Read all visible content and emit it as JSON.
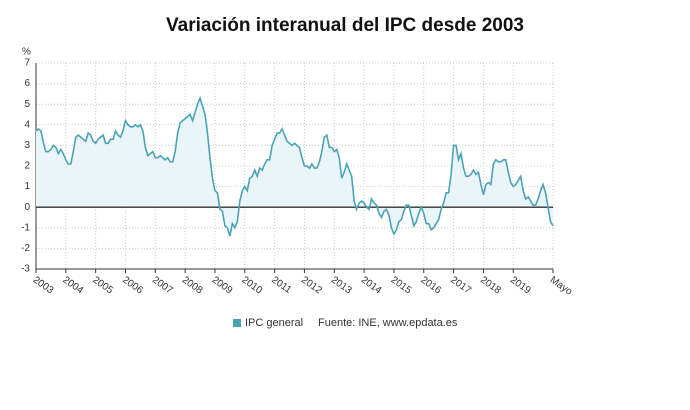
{
  "chart_data": {
    "type": "line",
    "title": "Variación interanual del IPC desde 2003",
    "y_unit": "%",
    "categories": [
      "2003",
      null,
      null,
      null,
      null,
      null,
      null,
      null,
      null,
      null,
      null,
      null,
      "2004",
      null,
      null,
      null,
      null,
      null,
      null,
      null,
      null,
      null,
      null,
      null,
      "2005",
      null,
      null,
      null,
      null,
      null,
      null,
      null,
      null,
      null,
      null,
      null,
      "2006",
      null,
      null,
      null,
      null,
      null,
      null,
      null,
      null,
      null,
      null,
      null,
      "2007",
      null,
      null,
      null,
      null,
      null,
      null,
      null,
      null,
      null,
      null,
      null,
      "2008",
      null,
      null,
      null,
      null,
      null,
      null,
      null,
      null,
      null,
      null,
      null,
      "2009",
      null,
      null,
      null,
      null,
      null,
      null,
      null,
      null,
      null,
      null,
      null,
      "2010",
      null,
      null,
      null,
      null,
      null,
      null,
      null,
      null,
      null,
      null,
      null,
      "2011",
      null,
      null,
      null,
      null,
      null,
      null,
      null,
      null,
      null,
      null,
      null,
      "2012",
      null,
      null,
      null,
      null,
      null,
      null,
      null,
      null,
      null,
      null,
      null,
      "2013",
      null,
      null,
      null,
      null,
      null,
      null,
      null,
      null,
      null,
      null,
      null,
      "2014",
      null,
      null,
      null,
      null,
      null,
      null,
      null,
      null,
      null,
      null,
      null,
      "2015",
      null,
      null,
      null,
      null,
      null,
      null,
      null,
      null,
      null,
      null,
      null,
      "2016",
      null,
      null,
      null,
      null,
      null,
      null,
      null,
      null,
      null,
      null,
      null,
      "2017",
      null,
      null,
      null,
      null,
      null,
      null,
      null,
      null,
      null,
      null,
      null,
      "2018",
      null,
      null,
      null,
      null,
      null,
      null,
      null,
      null,
      null,
      null,
      null,
      "2019",
      null,
      null,
      null,
      null,
      null,
      null,
      null,
      null,
      null,
      null,
      null,
      null,
      null,
      null,
      null,
      "Mayo"
    ],
    "series": [
      {
        "name": "IPC general",
        "color": "#4ba3b5",
        "area_color": "#eaf5f9",
        "values": [
          3.7,
          3.8,
          3.7,
          3.1,
          2.7,
          2.7,
          2.8,
          3.0,
          2.9,
          2.6,
          2.8,
          2.6,
          2.3,
          2.1,
          2.1,
          2.7,
          3.4,
          3.5,
          3.4,
          3.3,
          3.2,
          3.6,
          3.5,
          3.2,
          3.1,
          3.3,
          3.4,
          3.5,
          3.1,
          3.1,
          3.3,
          3.3,
          3.7,
          3.5,
          3.4,
          3.7,
          4.2,
          4.0,
          3.9,
          3.9,
          4.0,
          3.9,
          4.0,
          3.7,
          2.9,
          2.5,
          2.6,
          2.7,
          2.4,
          2.4,
          2.5,
          2.4,
          2.3,
          2.4,
          2.2,
          2.2,
          2.7,
          3.6,
          4.1,
          4.2,
          4.3,
          4.4,
          4.5,
          4.2,
          4.6,
          5.0,
          5.3,
          4.9,
          4.5,
          3.6,
          2.4,
          1.4,
          0.8,
          0.7,
          -0.1,
          -0.2,
          -0.9,
          -1.0,
          -1.4,
          -0.8,
          -1.0,
          -0.7,
          0.3,
          0.8,
          1.0,
          0.8,
          1.4,
          1.5,
          1.8,
          1.5,
          1.9,
          1.8,
          2.1,
          2.3,
          2.3,
          3.0,
          3.3,
          3.6,
          3.6,
          3.8,
          3.5,
          3.2,
          3.1,
          3.0,
          3.1,
          3.0,
          2.9,
          2.4,
          2.0,
          2.0,
          1.9,
          2.1,
          1.9,
          1.9,
          2.2,
          2.7,
          3.4,
          3.5,
          2.9,
          2.9,
          2.7,
          2.8,
          2.4,
          1.4,
          1.7,
          2.1,
          1.8,
          1.5,
          0.3,
          -0.1,
          0.2,
          0.3,
          0.2,
          0.0,
          -0.1,
          0.4,
          0.2,
          0.1,
          -0.3,
          -0.5,
          -0.2,
          -0.1,
          -0.4,
          -1.0,
          -1.3,
          -1.1,
          -0.7,
          -0.6,
          -0.2,
          0.1,
          0.1,
          -0.4,
          -0.9,
          -0.7,
          -0.3,
          0.0,
          -0.3,
          -0.8,
          -0.8,
          -1.1,
          -1.0,
          -0.8,
          -0.6,
          -0.1,
          0.2,
          0.7,
          0.7,
          1.6,
          3.0,
          3.0,
          2.3,
          2.6,
          1.9,
          1.5,
          1.5,
          1.6,
          1.8,
          1.6,
          1.7,
          1.1,
          0.6,
          1.1,
          1.2,
          1.1,
          2.1,
          2.3,
          2.2,
          2.2,
          2.3,
          2.3,
          1.7,
          1.2,
          1.0,
          1.1,
          1.3,
          1.5,
          0.8,
          0.4,
          0.5,
          0.3,
          0.1,
          0.1,
          0.4,
          0.8,
          1.1,
          0.7,
          0.0,
          -0.7,
          -0.9
        ]
      }
    ],
    "ylim": [
      -3,
      7
    ],
    "yticks": [
      -3,
      -2,
      -1,
      0,
      1,
      2,
      3,
      4,
      5,
      6,
      7
    ],
    "grid": true,
    "source": "Fuente: INE, www.epdata.es"
  }
}
